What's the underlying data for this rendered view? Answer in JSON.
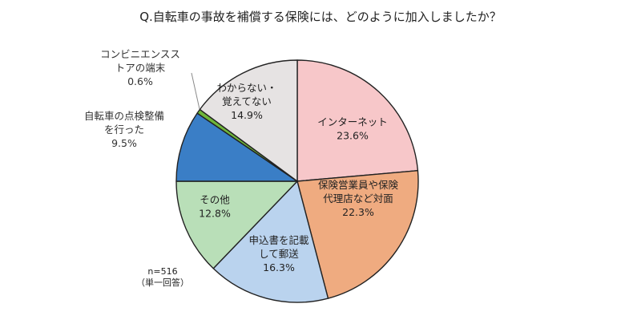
{
  "title": "Q.自転車の事故を補償する保険には、どのように加入しましたか？",
  "sample": {
    "n": "n=516",
    "note": "（単一回答）"
  },
  "chart_data": {
    "type": "pie",
    "start_angle_deg": 0,
    "direction": "clockwise",
    "slices": [
      {
        "label_lines": [
          "インターネット"
        ],
        "value_text": "23.6%",
        "value": 23.6,
        "color": "#f7c7c9",
        "label_style": "inside"
      },
      {
        "label_lines": [
          "保険営業員や保険",
          "代理店など対面"
        ],
        "value_text": "22.3%",
        "value": 22.3,
        "color": "#efab80",
        "label_style": "inside"
      },
      {
        "label_lines": [
          "申込書を記載",
          "して郵送"
        ],
        "value_text": "16.3%",
        "value": 16.3,
        "color": "#bad3ee",
        "label_style": "inside"
      },
      {
        "label_lines": [
          "その他"
        ],
        "value_text": "12.8%",
        "value": 12.8,
        "color": "#b9dfb8",
        "label_style": "inside"
      },
      {
        "label_lines": [
          "自転車の点検整備",
          "を行った"
        ],
        "value_text": "9.5%",
        "value": 9.5,
        "color": "#3a7ec6",
        "label_style": "outside"
      },
      {
        "label_lines": [
          "コンビニエンスス",
          "トアの端末"
        ],
        "value_text": "0.6%",
        "value": 0.6,
        "color": "#6fb63a",
        "label_style": "outside-leader"
      },
      {
        "label_lines": [
          "わからない・",
          "覚えてない"
        ],
        "value_text": "14.9%",
        "value": 14.9,
        "color": "#e6e3e3",
        "label_style": "inside"
      }
    ]
  }
}
